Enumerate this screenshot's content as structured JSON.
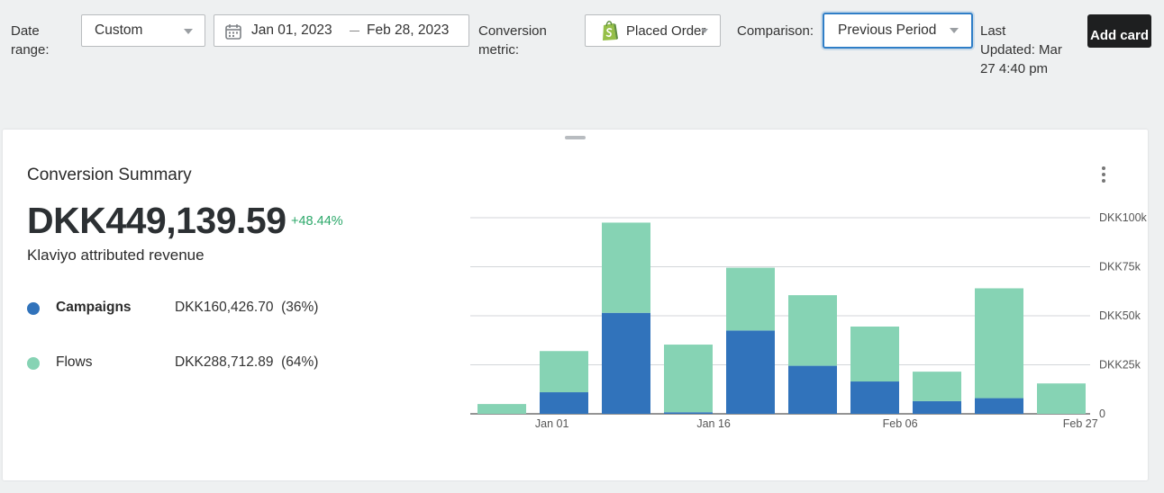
{
  "toolbar": {
    "date_range_label": "Date range:",
    "date_range_value": "Custom",
    "date_start": "Jan 01, 2023",
    "date_end": "Feb 28, 2023",
    "conversion_metric_label": "Conversion metric:",
    "conversion_metric_value": "Placed Order",
    "comparison_label": "Comparison:",
    "comparison_value": "Previous Period",
    "last_updated": "Last Updated: Mar 27 4:40 pm",
    "add_card_label": "Add card"
  },
  "card": {
    "title": "Conversion Summary",
    "total": "DKK449,139.59",
    "delta": "+48.44%",
    "subtitle": "Klaviyo attributed revenue",
    "legend": [
      {
        "name": "Campaigns",
        "value": "DKK160,426.70",
        "pct": "(36%)",
        "color": "#3173bb"
      },
      {
        "name": "Flows",
        "value": "DKK288,712.89",
        "pct": "(64%)",
        "color": "#86d3b4"
      }
    ]
  },
  "colors": {
    "campaigns": "#3173bb",
    "flows": "#86d3b4",
    "accent_focus": "#2f7ec7",
    "delta_positive": "#2ca86a",
    "shopify_green": "#95bf47"
  },
  "icons": {
    "calendar": "calendar-icon",
    "shopify": "shopify-icon",
    "caret": "chevron-down-icon",
    "more": "more-vertical-icon"
  },
  "chart_data": {
    "type": "bar",
    "stacked": true,
    "ylim": [
      0,
      100000
    ],
    "y_ticks": [
      0,
      25000,
      50000,
      75000,
      100000
    ],
    "y_tick_labels": [
      "0",
      "DKK25k",
      "DKK50k",
      "DKK75k",
      "DKK100k"
    ],
    "x_tick_labels": [
      {
        "label": "Jan 01",
        "bar_index": 0.8
      },
      {
        "label": "Jan 16",
        "bar_index": 3.4
      },
      {
        "label": "Feb 06",
        "bar_index": 6.4
      },
      {
        "label": "Feb 27",
        "bar_index": 9.3
      }
    ],
    "categories": [
      "1",
      "2",
      "3",
      "4",
      "5",
      "6",
      "7",
      "8",
      "9",
      "10"
    ],
    "series": [
      {
        "name": "Campaigns",
        "values": [
          0,
          11000,
          51500,
          800,
          42500,
          24500,
          16500,
          6500,
          8000,
          0
        ]
      },
      {
        "name": "Flows",
        "values": [
          5000,
          21000,
          46000,
          34500,
          32000,
          36000,
          28000,
          15000,
          56000,
          15500
        ]
      }
    ],
    "grid": true,
    "legend_position": "left panel"
  }
}
